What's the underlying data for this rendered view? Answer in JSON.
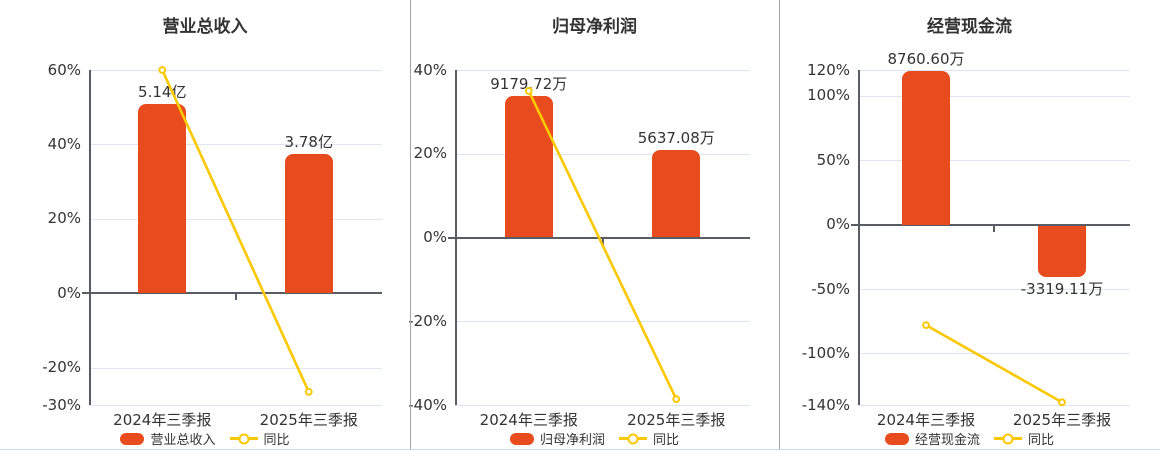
{
  "page_title": "财报三图:营业总收入 / 归母净利润 / 经营现金流",
  "colors": {
    "bar": "#e84c1e",
    "line": "#fac800",
    "marker_fill": "#ffffff",
    "title_text": "#333333",
    "tick_text": "#333333",
    "value_text": "#333333",
    "grid": "#dde5f2",
    "axis": "#585c64",
    "divider": "#a3a3a3",
    "bottom_border": "#ccd7ea",
    "background": "#ffffff"
  },
  "chart_data": [
    {
      "type": "bar+line",
      "title": "营业总收入",
      "categories": [
        "2024年三季报",
        "2025年三季报"
      ],
      "bar_series": {
        "name": "营业总收入",
        "unit": "亿",
        "values": [
          5.14,
          3.78
        ],
        "labels": [
          "5.14亿",
          "3.78亿"
        ],
        "axis_display_values": [
          51.0,
          37.4
        ]
      },
      "line_series": {
        "name": "同比",
        "values_pct": [
          60.0,
          -26.46
        ]
      },
      "y_ticks_pct": [
        60,
        40,
        20,
        0,
        -20,
        -30
      ],
      "ylim_pct": [
        -30,
        60
      ],
      "grid": true,
      "legend": [
        "营业总收入",
        "同比"
      ],
      "legend_position": "bottom"
    },
    {
      "type": "bar+line",
      "title": "归母净利润",
      "categories": [
        "2024年三季报",
        "2025年三季报"
      ],
      "bar_series": {
        "name": "归母净利润",
        "unit": "万",
        "values": [
          9179.72,
          5637.08
        ],
        "labels": [
          "9179.72万",
          "5637.08万"
        ],
        "axis_display_values": [
          33.9,
          20.8
        ]
      },
      "line_series": {
        "name": "同比",
        "values_pct": [
          35.0,
          -38.59
        ]
      },
      "y_ticks_pct": [
        40,
        20,
        0,
        -20,
        -40
      ],
      "ylim_pct": [
        -40,
        40
      ],
      "grid": true,
      "legend": [
        "归母净利润",
        "同比"
      ],
      "legend_position": "bottom"
    },
    {
      "type": "bar+line",
      "title": "经营现金流",
      "categories": [
        "2024年三季报",
        "2025年三季报"
      ],
      "bar_series": {
        "name": "经营现金流",
        "unit": "万",
        "values": [
          8760.6,
          -3319.11
        ],
        "labels": [
          "8760.60万",
          "-3319.11万"
        ],
        "axis_display_values": [
          119.0,
          -41.0
        ]
      },
      "line_series": {
        "name": "同比",
        "values_pct": [
          -78.0,
          -137.89
        ]
      },
      "y_ticks_pct": [
        120,
        100,
        50,
        0,
        -50,
        -100,
        -140
      ],
      "ylim_pct": [
        -140,
        120
      ],
      "grid": true,
      "legend": [
        "经营现金流",
        "同比"
      ],
      "legend_position": "bottom"
    }
  ]
}
